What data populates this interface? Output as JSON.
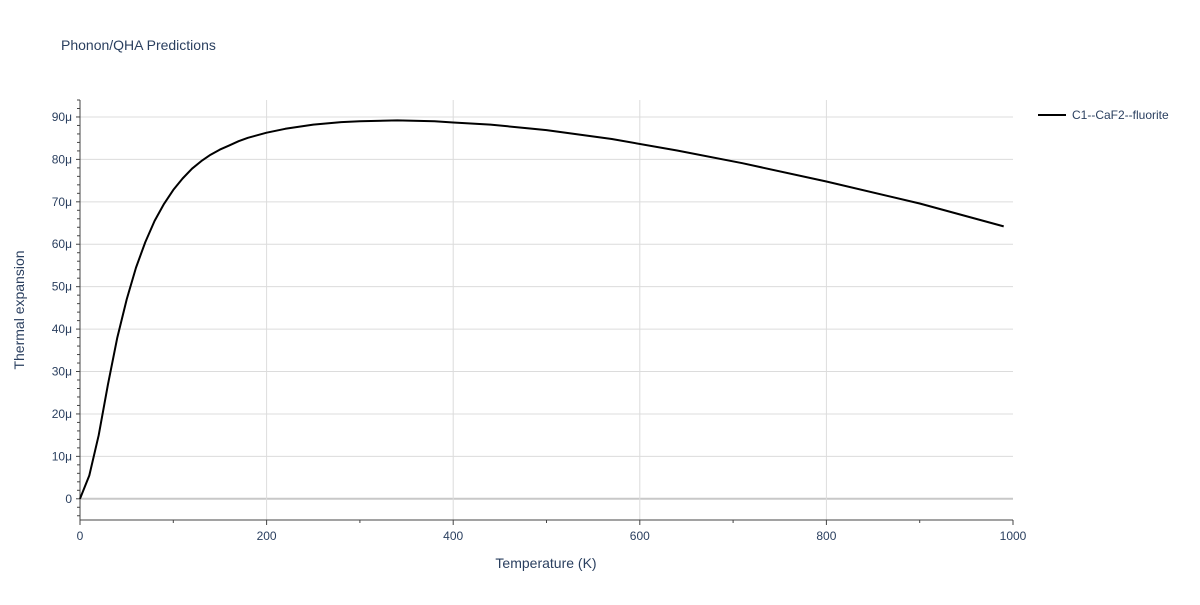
{
  "chart_data": {
    "type": "line",
    "title": "Phonon/QHA Predictions",
    "xlabel": "Temperature (K)",
    "ylabel": "Thermal expansion",
    "xlim": [
      0,
      1000
    ],
    "ylim": [
      -5,
      94
    ],
    "x_ticks": [
      0,
      200,
      400,
      600,
      800,
      1000
    ],
    "x_tick_labels": [
      "0",
      "200",
      "400",
      "600",
      "800",
      "1000"
    ],
    "y_ticks": [
      0,
      10,
      20,
      30,
      40,
      50,
      60,
      70,
      80,
      90
    ],
    "y_tick_labels": [
      "0",
      "10μ",
      "20μ",
      "30μ",
      "40μ",
      "50μ",
      "60μ",
      "70μ",
      "80μ",
      "90μ"
    ],
    "y_unit_scale": "1e-6",
    "grid": true,
    "legend_position": "top-right",
    "colors": {
      "line": "#000000",
      "grid": "#dcdcdc",
      "zero_line": "#c8c8c8",
      "axis": "#444444",
      "text": "#2a3f5f"
    },
    "series": [
      {
        "name": "C1--CaF2--fluorite",
        "x": [
          0,
          10,
          20,
          30,
          40,
          50,
          60,
          70,
          80,
          90,
          100,
          110,
          120,
          130,
          140,
          150,
          160,
          170,
          180,
          200,
          220,
          250,
          280,
          300,
          340,
          380,
          400,
          440,
          500,
          570,
          640,
          710,
          800,
          900,
          990
        ],
        "y": [
          0,
          5.5,
          15,
          27,
          38,
          47,
          54.5,
          60.5,
          65.5,
          69.5,
          72.8,
          75.5,
          77.8,
          79.6,
          81.1,
          82.3,
          83.3,
          84.3,
          85.1,
          86.3,
          87.2,
          88.2,
          88.8,
          89.0,
          89.2,
          89.0,
          88.7,
          88.2,
          86.9,
          84.8,
          82.1,
          79.1,
          74.8,
          69.6,
          64.2
        ]
      }
    ]
  }
}
